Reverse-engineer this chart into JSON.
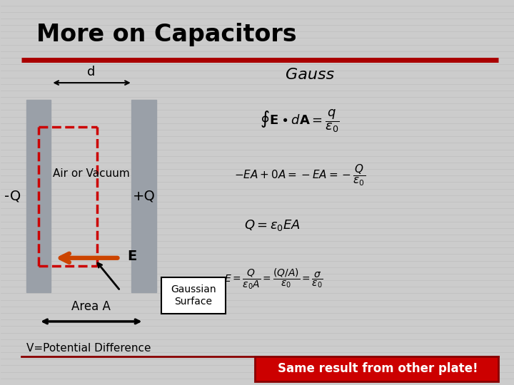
{
  "title": "More on Capacitors",
  "bg_color": "#e8e8e8",
  "slide_bg": "#d8d8d8",
  "title_color": "#000000",
  "red_line_color": "#aa0000",
  "plate_color": "#9aa0a8",
  "gauss_label": "Gauss",
  "label_negQ": "-Q",
  "label_posQ": "+Q",
  "label_d": "d",
  "label_air": "Air or Vacuum",
  "label_E": "E",
  "label_areaA": "Area A",
  "label_gaussian": "Gaussian\nSurface",
  "label_vpd": "V=Potential Difference",
  "bottom_note": "Same result from other plate!",
  "bottom_note_bg": "#cc0000",
  "bottom_note_color": "#ffffff"
}
